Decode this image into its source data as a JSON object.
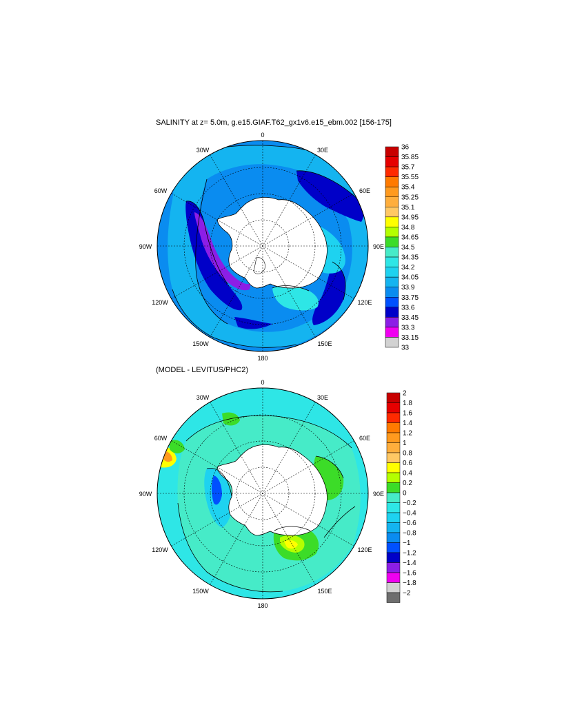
{
  "figure": {
    "panel_top_title": "SALINITY at z=   5.0m, g.e15.GIAF.T62_gx1v6.e15_ebm.002 [156-175]",
    "panel_bottom_title": "(MODEL - LEVITUS/PHC2)"
  },
  "map_labels": {
    "lon_0": "0",
    "lon_30e": "30E",
    "lon_60e": "60E",
    "lon_90e": "90E",
    "lon_120e": "120E",
    "lon_150e": "150E",
    "lon_180": "180",
    "lon_150w": "150W",
    "lon_120w": "120W",
    "lon_90w": "90W",
    "lon_60w": "60W",
    "lon_30w": "30W"
  },
  "colorbar_top": {
    "labels": [
      "36",
      "35.85",
      "35.7",
      "35.55",
      "35.4",
      "35.25",
      "35.1",
      "34.95",
      "34.8",
      "34.65",
      "34.5",
      "34.35",
      "34.2",
      "34.05",
      "33.9",
      "33.75",
      "33.6",
      "33.45",
      "33.3",
      "33.15",
      "33"
    ],
    "colors": [
      "#c80000",
      "#e60000",
      "#ff2a00",
      "#ff7a00",
      "#ff9a1e",
      "#ffae3c",
      "#ffc864",
      "#ffff00",
      "#b4ff00",
      "#3cdc28",
      "#46ebc8",
      "#2ee6e6",
      "#1ed2f0",
      "#14b4f0",
      "#0a8cf0",
      "#0050ff",
      "#0000c8",
      "#8c1ee6",
      "#f000f0",
      "#d2d2d2"
    ]
  },
  "colorbar_bottom": {
    "labels": [
      "2",
      "1.8",
      "1.6",
      "1.4",
      "1.2",
      "1",
      "0.8",
      "0.6",
      "0.4",
      "0.2",
      "0",
      "−0.2",
      "−0.4",
      "−0.6",
      "−0.8",
      "−1",
      "−1.2",
      "−1.4",
      "−1.6",
      "−1.8",
      "−2"
    ],
    "colors": [
      "#c80000",
      "#e60000",
      "#ff2a00",
      "#ff7a00",
      "#ff9a1e",
      "#ffae3c",
      "#ffc864",
      "#ffff00",
      "#b4ff00",
      "#3cdc28",
      "#46ebc8",
      "#2ee6e6",
      "#1ed2f0",
      "#14b4f0",
      "#0a8cf0",
      "#0050ff",
      "#0000c8",
      "#8c1ee6",
      "#f000f0",
      "#d2d2d2",
      "#6e6e6e"
    ]
  }
}
